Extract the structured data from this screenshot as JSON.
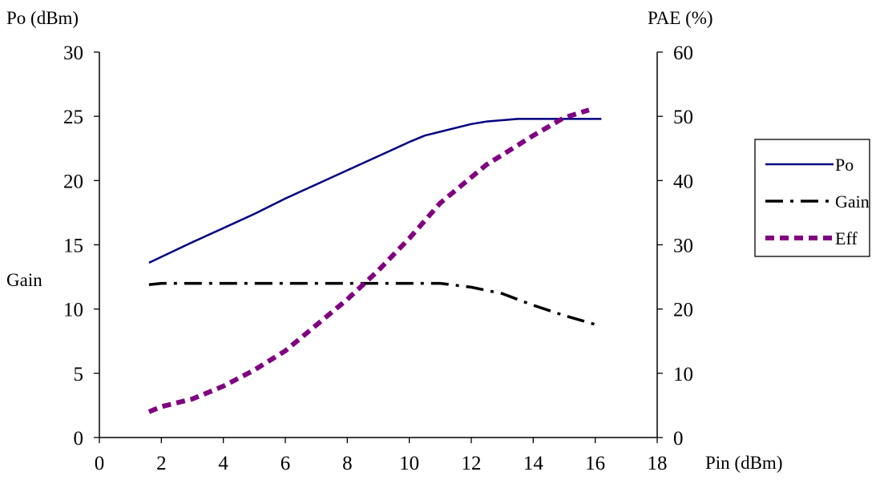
{
  "chart_data": {
    "type": "line",
    "xlabel": "Pin (dBm)",
    "ylabel_left": "Po (dBm)",
    "ylabel_left_secondary": "Gain",
    "ylabel_right": "PAE (%)",
    "xlim": [
      0,
      18
    ],
    "ylim_left": [
      0,
      30
    ],
    "ylim_right": [
      0,
      60
    ],
    "x_ticks": [
      "0",
      "2",
      "4",
      "6",
      "8",
      "10",
      "12",
      "14",
      "16",
      "18"
    ],
    "y_left_ticks": [
      "0",
      "5",
      "10",
      "15",
      "20",
      "25",
      "30"
    ],
    "y_right_ticks": [
      "0",
      "10",
      "20",
      "30",
      "40",
      "50",
      "60"
    ],
    "grid": false,
    "legend_position": "right",
    "series": [
      {
        "name": "Po",
        "axis": "left",
        "color": "#000080",
        "style": "solid",
        "x": [
          1.6,
          3,
          4,
          5,
          6,
          7,
          8,
          9,
          10,
          10.5,
          11,
          12,
          12.5,
          13,
          13.5,
          14,
          14.5,
          15,
          16,
          16.2
        ],
        "y": [
          13.6,
          15.2,
          16.3,
          17.4,
          18.6,
          19.7,
          20.8,
          21.9,
          23.0,
          23.5,
          23.8,
          24.4,
          24.6,
          24.7,
          24.8,
          24.8,
          24.8,
          24.8,
          24.8,
          24.8
        ]
      },
      {
        "name": "Gain",
        "axis": "left",
        "color": "#000000",
        "style": "dashdot",
        "x": [
          1.6,
          2,
          4,
          6,
          8,
          10,
          11,
          12,
          13,
          14,
          15,
          16
        ],
        "y": [
          11.9,
          12.0,
          12.0,
          12.0,
          12.0,
          12.0,
          12.0,
          11.7,
          11.2,
          10.3,
          9.5,
          8.8
        ]
      },
      {
        "name": "Eff",
        "axis": "right",
        "color": "#800080",
        "style": "dotted",
        "x": [
          1.6,
          2,
          3,
          4,
          5,
          6,
          7,
          8,
          9,
          9.5,
          10,
          11,
          12,
          12.5,
          13,
          14,
          15,
          15.8
        ],
        "y": [
          4.0,
          4.8,
          6.0,
          8.0,
          10.5,
          13.5,
          17.5,
          21.5,
          26.0,
          28.5,
          31.0,
          36.5,
          40.5,
          42.5,
          44.0,
          47.0,
          49.8,
          51.0
        ]
      }
    ]
  }
}
